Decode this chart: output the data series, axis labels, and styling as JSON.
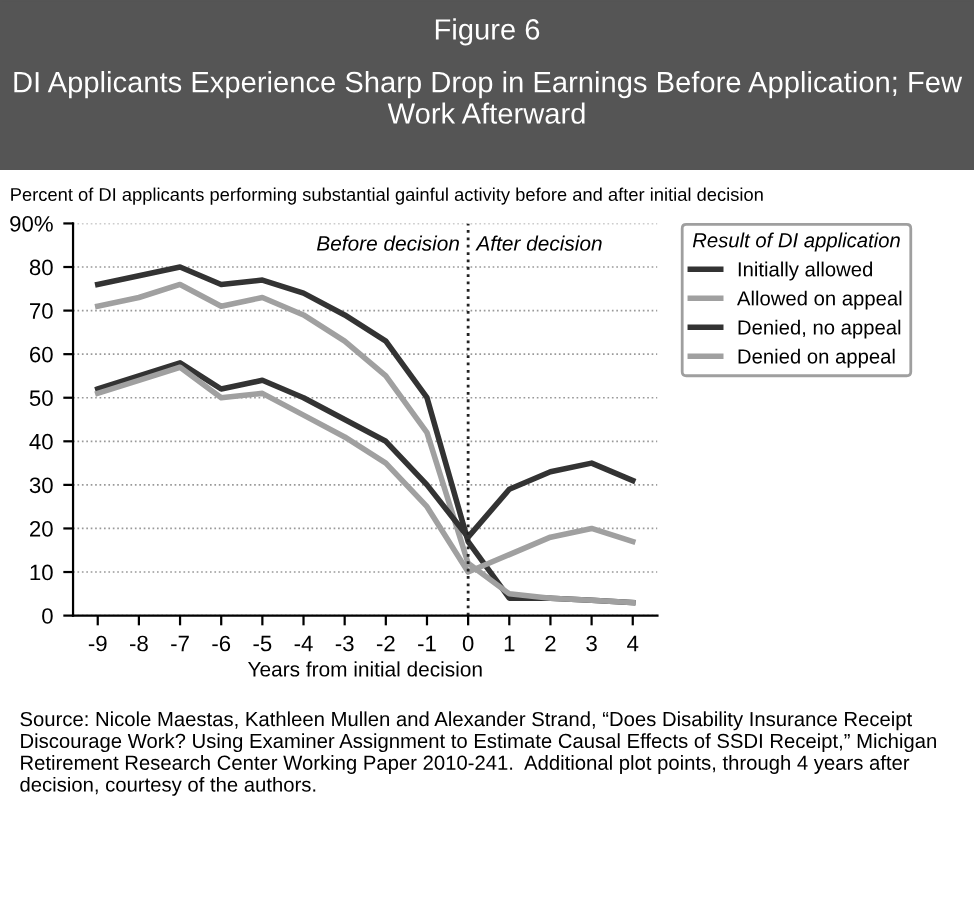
{
  "chart_data": {
    "type": "line",
    "title": "Figure 6",
    "subtitle": "DI Applicants Experience Sharp Drop in Earnings Before Application; Few Work Afterward",
    "ylabel": "Percent of DI applicants performing substantial gainful activity before and after initial decision",
    "xlabel": "Years from initial decision",
    "legend_title": "Result of DI application",
    "legend": "right",
    "x": [
      -9,
      -8,
      -7,
      -6,
      -5,
      -4,
      -3,
      -2,
      -1,
      0,
      1,
      2,
      3,
      4
    ],
    "series": [
      {
        "name": "Initially allowed",
        "color": "#333333",
        "values": [
          76,
          78,
          80,
          76,
          77,
          74,
          69,
          63,
          50,
          17,
          4,
          4,
          3.5,
          3
        ]
      },
      {
        "name": "Allowed on appeal",
        "color": "#a0a0a0",
        "values": [
          71,
          73,
          76,
          71,
          73,
          69,
          63,
          55,
          42,
          12,
          5,
          4,
          3.5,
          3
        ]
      },
      {
        "name": "Denied, no appeal",
        "color": "#333333",
        "values": [
          52,
          55,
          58,
          52,
          54,
          50,
          45,
          40,
          30,
          18,
          29,
          33,
          35,
          31
        ]
      },
      {
        "name": "Denied on appeal",
        "color": "#a0a0a0",
        "values": [
          51,
          54,
          57,
          50,
          51,
          46,
          41,
          35,
          25,
          10,
          14,
          18,
          20,
          17
        ]
      }
    ],
    "xlim": [
      -9.6,
      4.6
    ],
    "xticks": [
      -9,
      -8,
      -7,
      -6,
      -5,
      -4,
      -3,
      -2,
      -1,
      0,
      1,
      2,
      3,
      4
    ],
    "ylim": [
      0,
      90
    ],
    "yticks": [
      0,
      10,
      20,
      30,
      40,
      50,
      60,
      70,
      80,
      {
        "value": 90,
        "label": "90%"
      }
    ],
    "grid": "y",
    "marker": "none",
    "line_style": "solid",
    "ref_lines": [
      {
        "axis": "x",
        "value": 0,
        "line_style": "dotted",
        "color": "#222222"
      }
    ],
    "annotations": [
      {
        "text": "Before decision",
        "x": -0.2,
        "y": 85
      },
      {
        "text": "After decision",
        "x": 0.2,
        "y": 85
      },
      "Source: Nicole Maestas, Kathleen Mullen and Alexander Strand, “Does Disability Insurance Receipt Discourage Work? Using Examiner Assignment to Estimate Causal Effects of SSDI Receipt,” Michigan Retirement Research Center Working Paper 2010-241.  Additional plot points, through 4 years after decision, courtesy of the authors."
    ]
  }
}
